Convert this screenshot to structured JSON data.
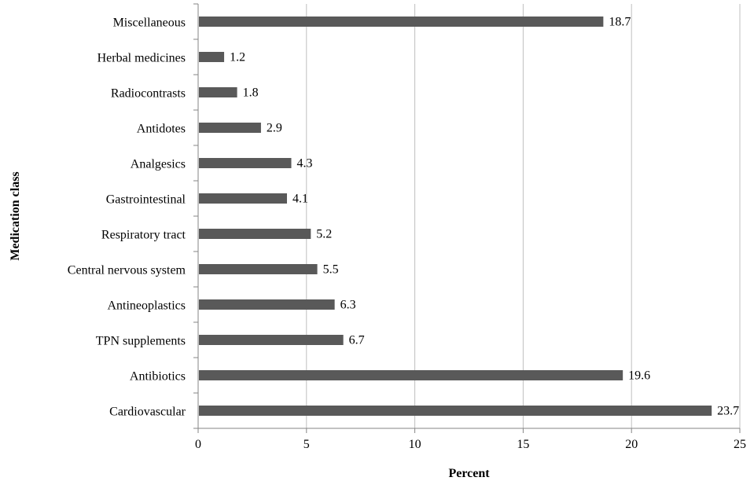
{
  "chart_data": {
    "type": "bar",
    "orientation": "horizontal",
    "title": "",
    "xlabel": "Percent",
    "ylabel": "Medication class",
    "xlim": [
      0,
      25
    ],
    "x_ticks": [
      0,
      5,
      10,
      15,
      20,
      25
    ],
    "grid": "vertical gridlines",
    "legend": "none",
    "bar_color": "#595959",
    "categories": [
      "Miscellaneous",
      "Herbal medicines",
      "Radiocontrasts",
      "Antidotes",
      "Analgesics",
      "Gastrointestinal",
      "Respiratory tract",
      "Central nervous system",
      "Antineoplastics",
      "TPN supplements",
      "Antibiotics",
      "Cardiovascular"
    ],
    "values": [
      18.7,
      1.2,
      1.8,
      2.9,
      4.3,
      4.1,
      5.2,
      5.5,
      6.3,
      6.7,
      19.6,
      23.7
    ]
  }
}
